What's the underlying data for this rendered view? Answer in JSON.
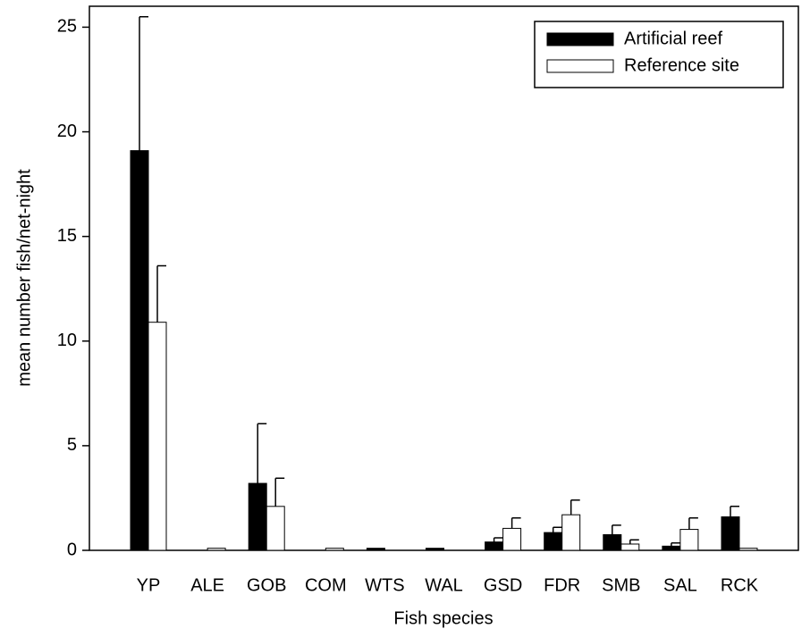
{
  "chart_data": {
    "type": "bar",
    "x_label": "Fish species",
    "y_label": "mean number fish/net-night",
    "categories": [
      "YP",
      "ALE",
      "GOB",
      "COM",
      "WTS",
      "WAL",
      "GSD",
      "FDR",
      "SMB",
      "SAL",
      "RCK"
    ],
    "series": [
      {
        "name": "Artificial reef",
        "color": "#000000",
        "values": [
          19.1,
          0,
          3.2,
          0,
          0.1,
          0.1,
          0.4,
          0.85,
          0.75,
          0.2,
          1.6
        ],
        "errors": [
          6.4,
          0,
          2.85,
          0,
          0,
          0,
          0.2,
          0.25,
          0.45,
          0.15,
          0.5
        ]
      },
      {
        "name": "Reference site",
        "color": "#ffffff",
        "values": [
          10.9,
          0.1,
          2.1,
          0.1,
          0,
          0,
          1.05,
          1.7,
          0.3,
          1.0,
          0.1
        ],
        "errors": [
          2.7,
          0,
          1.35,
          0,
          0,
          0,
          0.5,
          0.7,
          0.2,
          0.55,
          0
        ]
      }
    ],
    "ylim": [
      0,
      26
    ],
    "yticks": [
      0,
      5,
      10,
      15,
      20,
      25
    ],
    "legend": "upper right",
    "grid": false
  }
}
